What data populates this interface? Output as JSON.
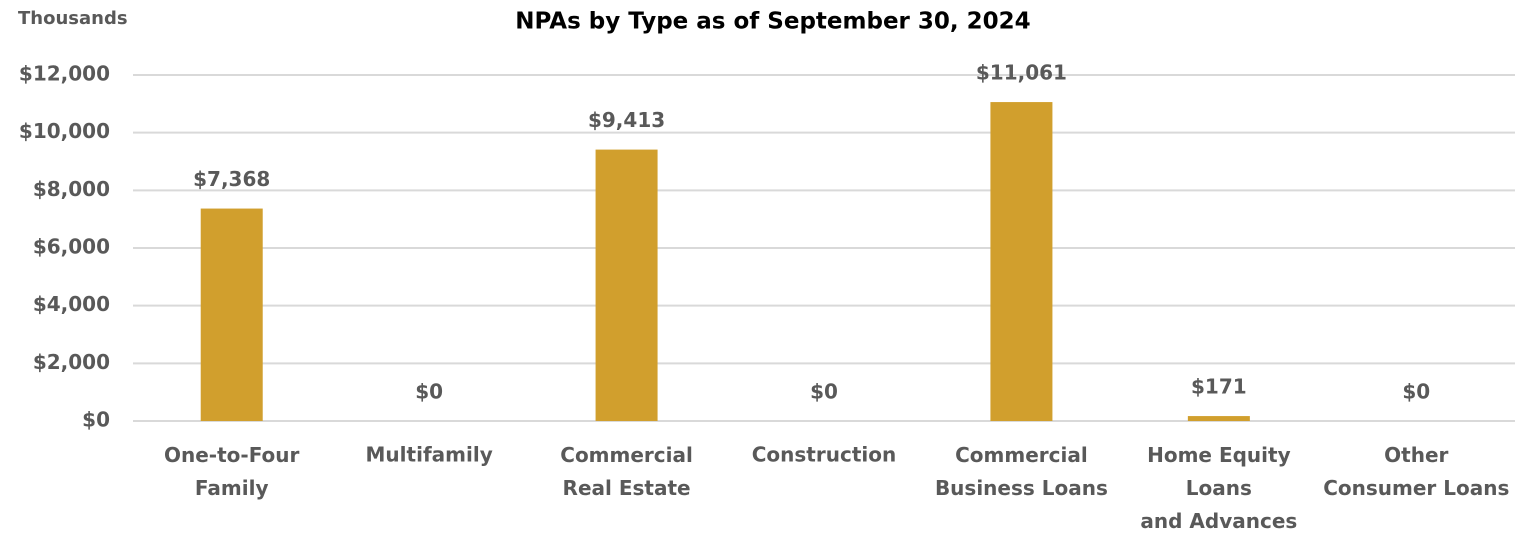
{
  "chart_data": {
    "type": "bar",
    "title": "NPAs by Type as of September 30, 2024",
    "y_axis_label": "Thousands",
    "categories": [
      "One-to-Four\nFamily",
      "Multifamily",
      "Commercial\nReal Estate",
      "Construction",
      "Commercial\nBusiness Loans",
      "Home Equity\nLoans\nand Advances",
      "Other\nConsumer Loans"
    ],
    "values": [
      7368,
      0,
      9413,
      0,
      11061,
      171,
      0
    ],
    "value_labels": [
      "$7,368",
      "$0",
      "$9,413",
      "$0",
      "$11,061",
      "$171",
      "$0"
    ],
    "color": "#d19f2d",
    "ylim": [
      0,
      12000
    ],
    "yticks": [
      {
        "value": 0,
        "label": "$0"
      },
      {
        "value": 2000,
        "label": "$2,000"
      },
      {
        "value": 4000,
        "label": "$4,000"
      },
      {
        "value": 6000,
        "label": "$6,000"
      },
      {
        "value": 8000,
        "label": "$8,000"
      },
      {
        "value": 10000,
        "label": "$10,000"
      },
      {
        "value": 12000,
        "label": "$12,000"
      }
    ],
    "grid": true
  }
}
